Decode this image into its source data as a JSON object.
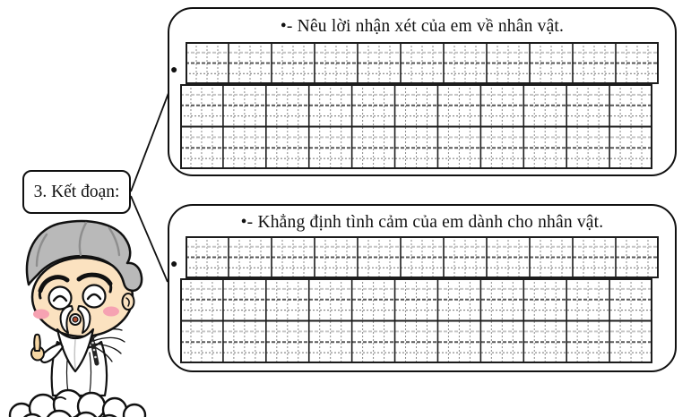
{
  "page": {
    "background": "#ffffff"
  },
  "label_box": {
    "text": "3. Kết đoạn:"
  },
  "bubbles": [
    {
      "title": "•- Nêu lời nhận xét của em về nhân vật.",
      "row_bullet": "●"
    },
    {
      "title": "•- Khẳng định tình cảm của em dành cho nhân vật.",
      "row_bullet": "●"
    }
  ],
  "icons": {
    "mascot": "wise-old-teacher-on-cloud"
  },
  "colors": {
    "ink": "#1c1c1c",
    "grid_fine": "#8a8a8a",
    "grid_light": "#c6c6c6",
    "grid_mid": "#585858",
    "grid_low": "#6e6e6e",
    "hair": "#b9b9b9",
    "skin": "#fbe2c0",
    "blush": "#f6a2b2",
    "mouth": "#ae4a30",
    "hand": "#f6d7a4"
  }
}
